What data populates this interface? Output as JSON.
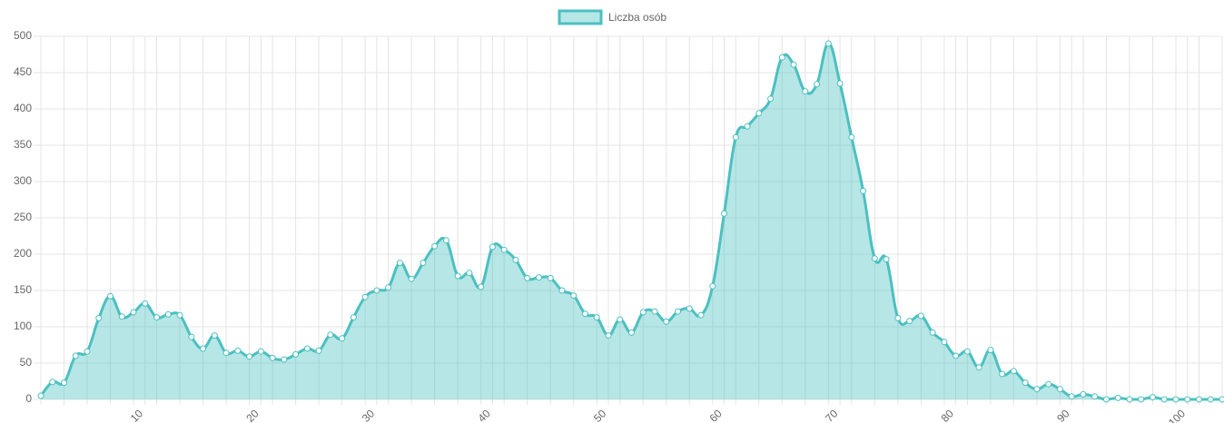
{
  "chart_data": {
    "type": "line",
    "series": [
      {
        "name": "Liczba osób",
        "color": "#4bc0c0",
        "fill": "rgba(75,192,192,0.4)",
        "values": [
          5,
          24,
          23,
          60,
          66,
          112,
          142,
          114,
          120,
          132,
          113,
          117,
          116,
          86,
          70,
          88,
          64,
          67,
          59,
          66,
          57,
          55,
          62,
          70,
          67,
          89,
          84,
          113,
          141,
          150,
          154,
          188,
          166,
          188,
          211,
          219,
          170,
          174,
          155,
          210,
          206,
          192,
          167,
          168,
          167,
          150,
          143,
          118,
          113,
          88,
          110,
          92,
          120,
          121,
          107,
          121,
          125,
          116,
          156,
          256,
          361,
          376,
          394,
          414,
          471,
          461,
          424,
          434,
          490,
          435,
          361,
          287,
          194,
          193,
          112,
          108,
          115,
          92,
          79,
          60,
          66,
          44,
          68,
          35,
          39,
          23,
          14,
          21,
          14,
          4,
          7,
          4,
          0,
          2,
          0,
          0,
          3,
          0,
          0,
          0,
          0,
          0,
          0
        ]
      }
    ],
    "categories": [
      null,
      null,
      null,
      null,
      null,
      null,
      null,
      null,
      null,
      10,
      null,
      null,
      null,
      null,
      null,
      null,
      null,
      null,
      null,
      20,
      null,
      null,
      null,
      null,
      null,
      null,
      null,
      null,
      null,
      30,
      null,
      null,
      null,
      null,
      null,
      null,
      null,
      null,
      null,
      40,
      null,
      null,
      null,
      null,
      null,
      null,
      null,
      null,
      null,
      50,
      null,
      null,
      null,
      null,
      null,
      null,
      null,
      null,
      null,
      60,
      null,
      null,
      null,
      null,
      null,
      null,
      null,
      null,
      null,
      70,
      null,
      null,
      null,
      null,
      null,
      null,
      null,
      null,
      null,
      80,
      null,
      null,
      null,
      null,
      null,
      null,
      null,
      null,
      null,
      90,
      null,
      null,
      null,
      null,
      null,
      null,
      null,
      null,
      null,
      100,
      null,
      null,
      null
    ],
    "ylim": [
      0,
      500
    ],
    "yticks": [
      0,
      50,
      100,
      150,
      200,
      250,
      300,
      350,
      400,
      450,
      500
    ],
    "grid": true,
    "legend": "top"
  }
}
